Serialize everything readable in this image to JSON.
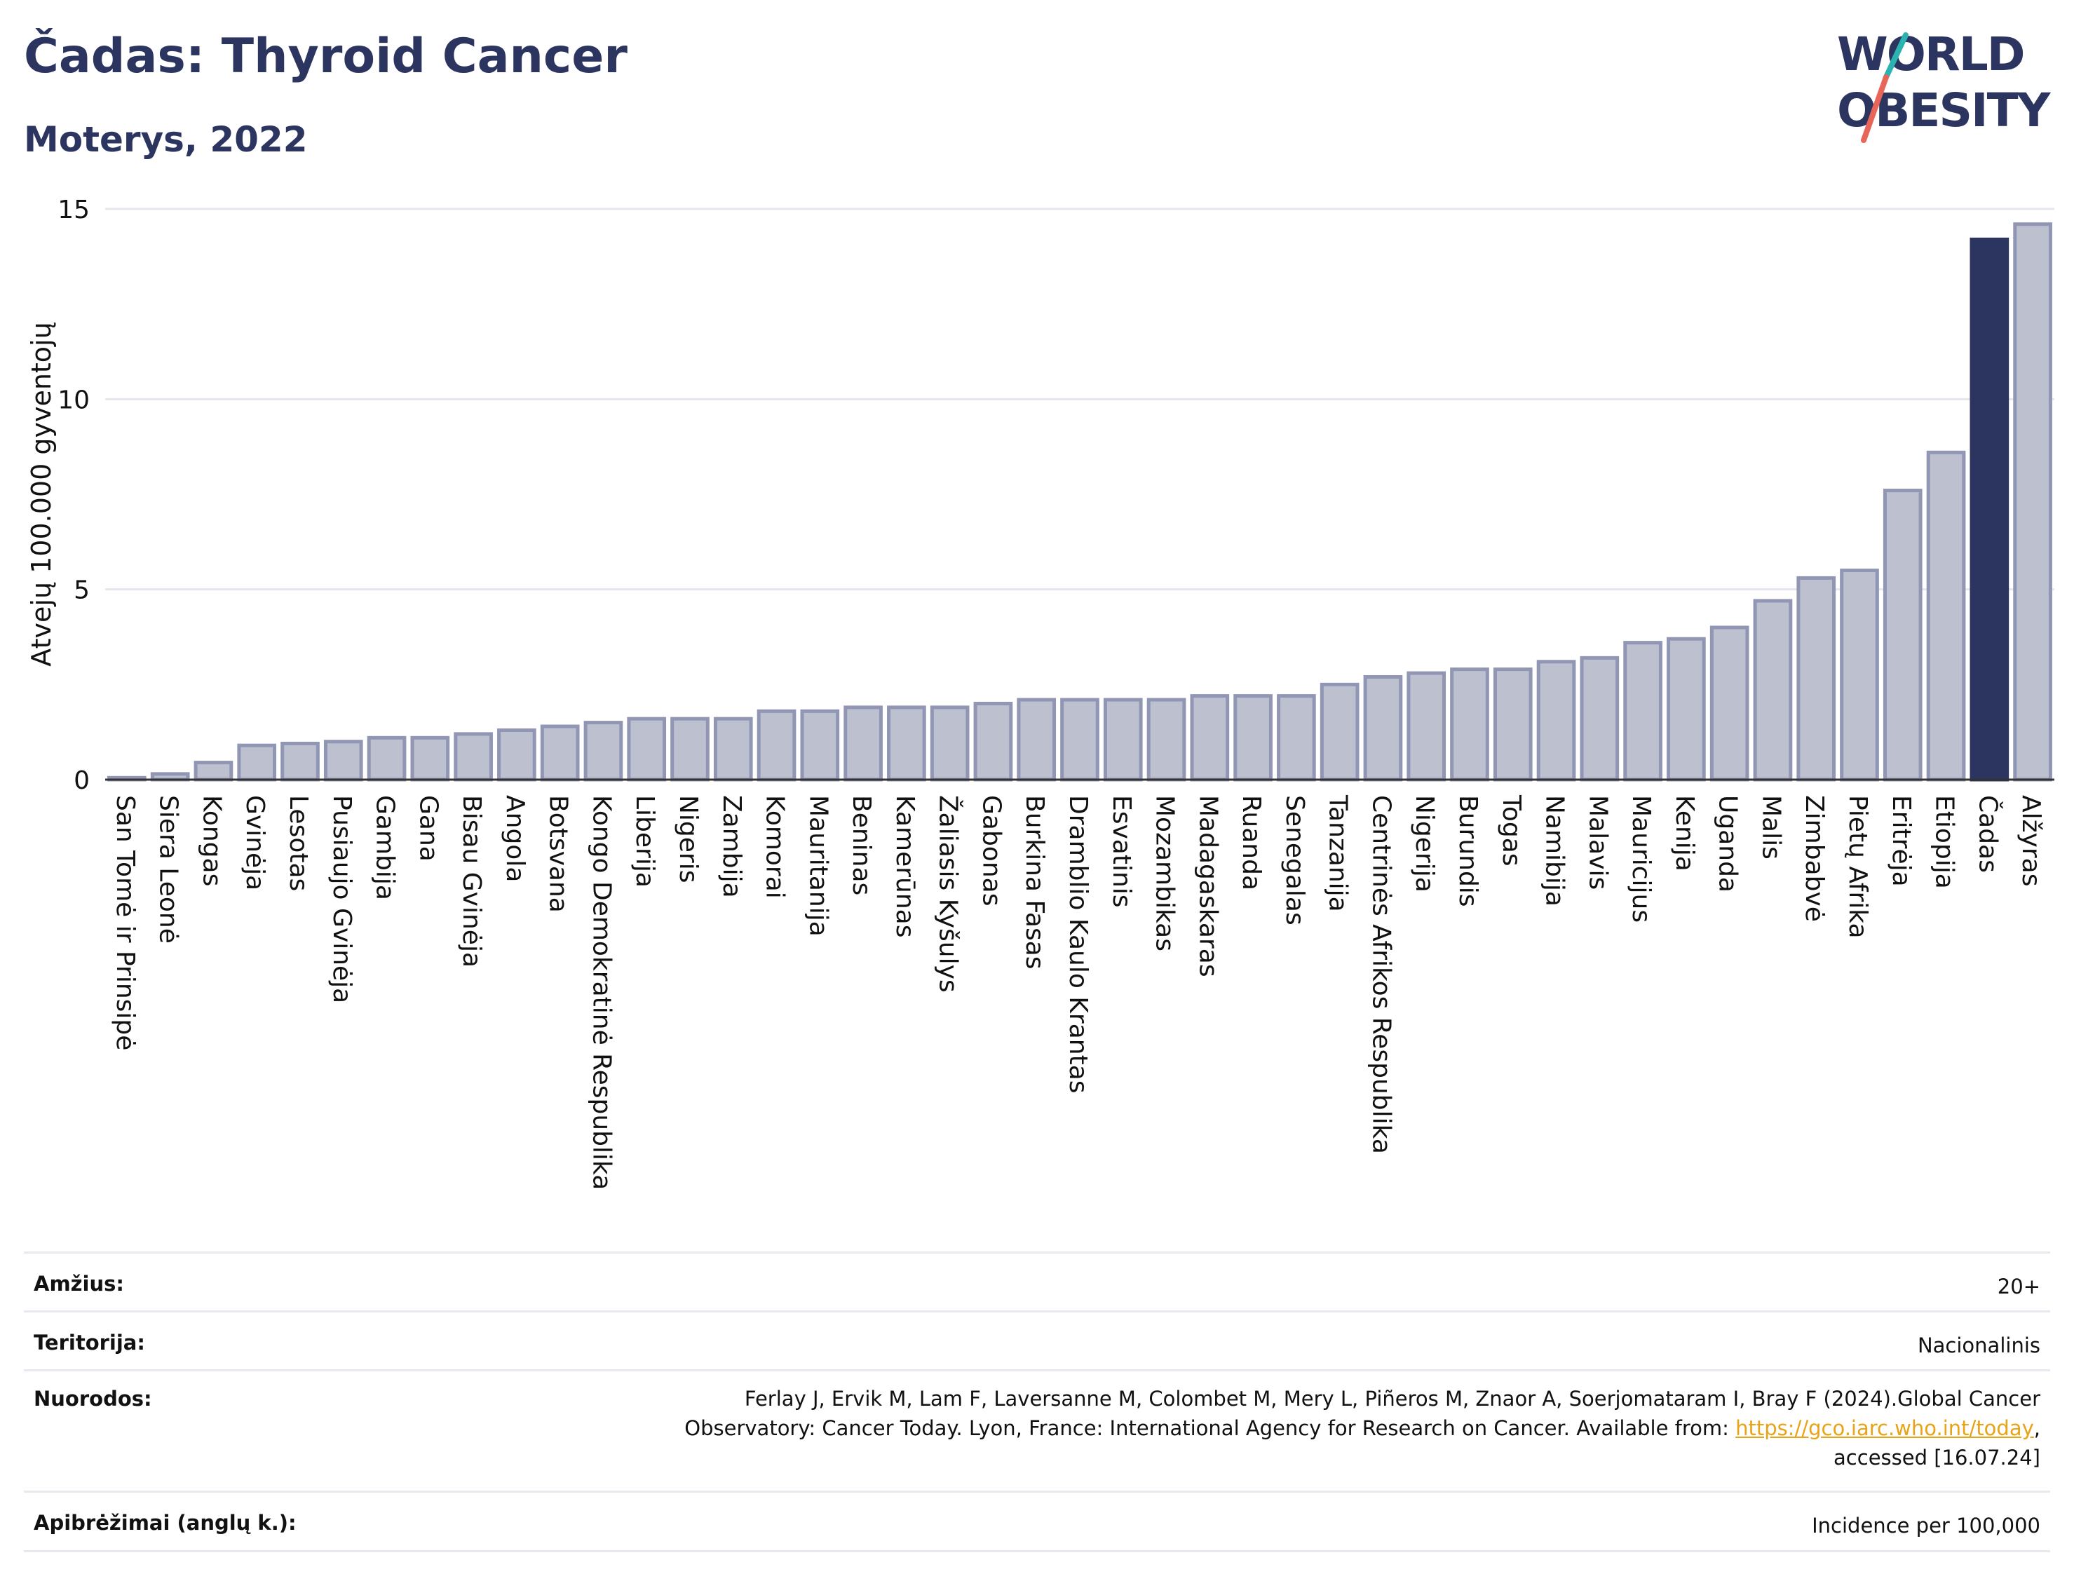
{
  "header": {
    "title": "Čadas: Thyroid Cancer",
    "subtitle": "Moterys, 2022"
  },
  "logo": {
    "line1": "WORLD",
    "line2": "OBESITY"
  },
  "colors": {
    "title": "#2b3560",
    "bar": "#bcc0cf",
    "bar_stroke": "#9096b3",
    "highlight": "#2b3560",
    "grid": "#e5e7ee",
    "link": "#e8a317"
  },
  "chart_data": {
    "type": "bar",
    "ylabel": "Atvejų 100.000 gyventojų",
    "ylim": [
      0,
      15
    ],
    "yticks": [
      0,
      5,
      10,
      15
    ],
    "grid": true,
    "highlight": "Čadas",
    "categories": [
      "San Tomė ir Prinsipė",
      "Siera Leonė",
      "Kongas",
      "Gvinėja",
      "Lesotas",
      "Pusiaujo Gvinėja",
      "Gambija",
      "Gana",
      "Bisau Gvinėja",
      "Angola",
      "Botsvana",
      "Kongo Demokratinė Respublika",
      "Liberija",
      "Nigeris",
      "Zambija",
      "Komorai",
      "Mauritanija",
      "Beninas",
      "Kamerūnas",
      "Žaliasis Kyšulys",
      "Gabonas",
      "Burkina Fasas",
      "Dramblio Kaulo Krantas",
      "Esvatinis",
      "Mozambikas",
      "Madagaskaras",
      "Ruanda",
      "Senegalas",
      "Tanzanija",
      "Centrinės Afrikos Respublika",
      "Nigerija",
      "Burundis",
      "Togas",
      "Namibija",
      "Malavis",
      "Mauricijus",
      "Kenija",
      "Uganda",
      "Malis",
      "Zimbabvė",
      "Pietų Afrika",
      "Eritrėja",
      "Etiopija",
      "Čadas",
      "Alžyras"
    ],
    "values": [
      0.05,
      0.15,
      0.45,
      0.9,
      0.95,
      1.0,
      1.1,
      1.1,
      1.2,
      1.3,
      1.4,
      1.5,
      1.6,
      1.6,
      1.6,
      1.8,
      1.8,
      1.9,
      1.9,
      1.9,
      2.0,
      2.1,
      2.1,
      2.1,
      2.1,
      2.2,
      2.2,
      2.2,
      2.5,
      2.7,
      2.8,
      2.9,
      2.9,
      3.1,
      3.2,
      3.6,
      3.7,
      4.0,
      4.7,
      5.3,
      5.5,
      7.6,
      8.6,
      14.2,
      14.6
    ]
  },
  "meta": {
    "age_label": "Amžius:",
    "age_value": "20+",
    "territory_label": "Teritorija:",
    "territory_value": "Nacionalinis",
    "refs_label": "Nuorodos:",
    "refs_line1": "Ferlay J, Ervik M, Lam F, Laversanne M, Colombet M, Mery L, Piñeros M, Znaor A, Soerjomataram I, Bray F (2024).Global Cancer",
    "refs_line2_pre": "Observatory: Cancer Today. Lyon, France: International Agency for Research on Cancer. Available from: ",
    "refs_link": "https://gco.iarc.who.int/today",
    "refs_line2_post": ",",
    "refs_line3": "accessed [16.07.24]",
    "defs_label": "Apibrėžimai (anglų k.):",
    "defs_value": "Incidence per 100,000"
  }
}
